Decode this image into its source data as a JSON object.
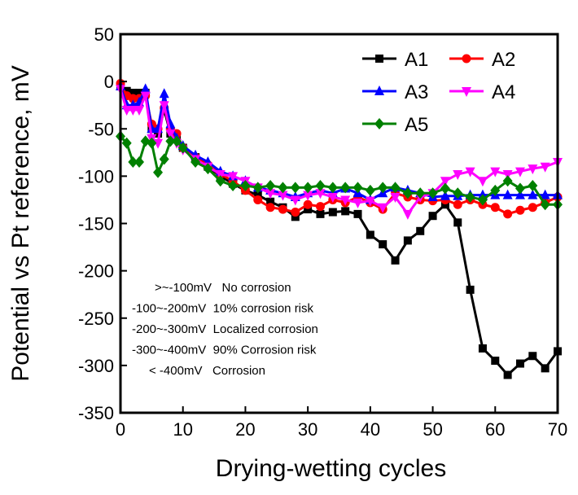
{
  "chart_data": {
    "type": "line",
    "title": "",
    "xlabel": "Drying-wetting cycles",
    "ylabel": "Potential vs Pt reference, mV",
    "xlim": [
      0,
      70
    ],
    "ylim": [
      -350,
      50
    ],
    "xticks": [
      0,
      10,
      20,
      30,
      40,
      50,
      60,
      70
    ],
    "yticks": [
      50,
      0,
      -50,
      -100,
      -150,
      -200,
      -250,
      -300,
      -350
    ],
    "grid": false,
    "legend_position": "top-right",
    "x": [
      0,
      1,
      2,
      3,
      4,
      5,
      6,
      7,
      8,
      9,
      10,
      12,
      14,
      16,
      18,
      20,
      22,
      24,
      26,
      28,
      30,
      32,
      34,
      36,
      38,
      40,
      42,
      44,
      46,
      48,
      50,
      52,
      54,
      56,
      58,
      60,
      62,
      64,
      66,
      68,
      70
    ],
    "series": [
      {
        "name": "A1",
        "color": "#000000",
        "marker": "square",
        "values": [
          -5,
          -10,
          -12,
          -12,
          -12,
          -50,
          -55,
          -30,
          -55,
          -60,
          -70,
          -80,
          -90,
          -100,
          -108,
          -115,
          -120,
          -127,
          -133,
          -143,
          -135,
          -140,
          -138,
          -137,
          -140,
          -162,
          -172,
          -189,
          -168,
          -158,
          -142,
          -130,
          -149,
          -220,
          -282,
          -295,
          -310,
          -298,
          -290,
          -303,
          -285
        ]
      },
      {
        "name": "A2",
        "color": "#ff0000",
        "marker": "circle",
        "values": [
          -2,
          -15,
          -18,
          -18,
          -15,
          -45,
          -50,
          -28,
          -50,
          -55,
          -70,
          -80,
          -88,
          -98,
          -105,
          -115,
          -125,
          -133,
          -135,
          -138,
          -130,
          -132,
          -125,
          -128,
          -122,
          -128,
          -135,
          -118,
          -122,
          -125,
          -126,
          -125,
          -130,
          -125,
          -130,
          -133,
          -140,
          -136,
          -133,
          -128,
          -122
        ]
      },
      {
        "name": "A3",
        "color": "#0000ff",
        "marker": "triangle-up",
        "values": [
          -5,
          -25,
          -25,
          -22,
          -8,
          -50,
          -50,
          -13,
          -45,
          -60,
          -68,
          -78,
          -85,
          -95,
          -100,
          -105,
          -112,
          -115,
          -118,
          -122,
          -118,
          -115,
          -118,
          -113,
          -118,
          -125,
          -118,
          -112,
          -115,
          -118,
          -122,
          -121,
          -121,
          -120,
          -120,
          -120,
          -120,
          -120,
          -120,
          -120,
          -120
        ]
      },
      {
        "name": "A4",
        "color": "#ff00ff",
        "marker": "triangle-down",
        "values": [
          -8,
          -30,
          -30,
          -30,
          -15,
          -60,
          -65,
          -25,
          -55,
          -65,
          -72,
          -82,
          -90,
          -98,
          -100,
          -105,
          -112,
          -118,
          -120,
          -125,
          -120,
          -118,
          -122,
          -125,
          -128,
          -126,
          -133,
          -122,
          -140,
          -122,
          -118,
          -105,
          -98,
          -95,
          -105,
          -95,
          -98,
          -95,
          -92,
          -90,
          -85
        ]
      },
      {
        "name": "A5",
        "color": "#008000",
        "marker": "diamond",
        "values": [
          -58,
          -65,
          -85,
          -85,
          -63,
          -65,
          -96,
          -82,
          -63,
          -63,
          -70,
          -85,
          -92,
          -105,
          -110,
          -110,
          -112,
          -110,
          -112,
          -112,
          -112,
          -110,
          -112,
          -112,
          -112,
          -115,
          -112,
          -112,
          -118,
          -118,
          -118,
          -113,
          -118,
          -122,
          -125,
          -115,
          -105,
          -113,
          -110,
          -130,
          -130
        ]
      }
    ],
    "annotations": [
      ">~-100mV   No corrosion",
      "-100~-200mV  10% corrosion risk",
      "-200~-300mV  Localized corrosion",
      "-300~-400mV  90% Corrosion risk",
      "< -400mV   Corrosion"
    ]
  }
}
